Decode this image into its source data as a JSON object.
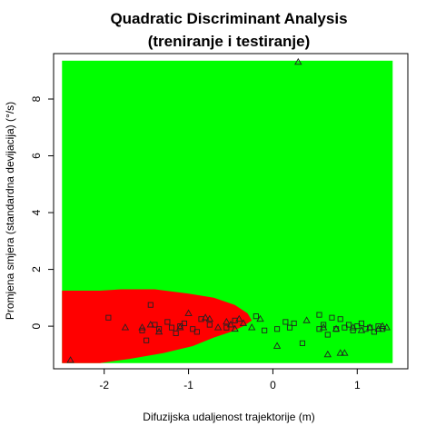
{
  "chart_data": {
    "type": "scatter",
    "title": "Quadratic Discriminant Analysis",
    "subtitle": "(treniranje i testiranje)",
    "xlabel": "Difuzijska udaljenost trajektorije (m)",
    "ylabel": "Promjena smjera (standardna devijacija) (°/s)",
    "xlim": [
      -2.6,
      1.6
    ],
    "ylim": [
      -1.5,
      9.6
    ],
    "xticks": [
      -2,
      -1,
      0,
      1
    ],
    "xtick_labels": [
      "-2",
      "-1",
      "0",
      "1"
    ],
    "yticks": [
      0,
      2,
      4,
      6,
      8
    ],
    "ytick_labels": [
      "0",
      "2",
      "4",
      "6",
      "8"
    ],
    "background_class_color": "#00ff00",
    "region_class_color": "#ff0000",
    "grid": false,
    "decision_region": {
      "x_range": [
        -2.5,
        1.42
      ],
      "y_range": [
        -1.3,
        9.35
      ],
      "upper_boundary": [
        [
          -2.5,
          1.25
        ],
        [
          -2.05,
          1.25
        ],
        [
          -1.8,
          1.3
        ],
        [
          -1.4,
          1.3
        ],
        [
          -1.0,
          1.15
        ],
        [
          -0.7,
          1.0
        ],
        [
          -0.45,
          0.75
        ],
        [
          -0.3,
          0.45
        ],
        [
          -0.25,
          0.2
        ],
        [
          -0.35,
          0.0
        ],
        [
          -0.5,
          -0.2
        ],
        [
          -0.7,
          -0.4
        ],
        [
          -0.95,
          -0.7
        ],
        [
          -1.3,
          -0.95
        ],
        [
          -1.7,
          -1.15
        ],
        [
          -2.05,
          -1.3
        ]
      ]
    },
    "series": [
      {
        "marker": "square",
        "points": [
          [
            -1.95,
            0.3
          ],
          [
            -1.55,
            -0.15
          ],
          [
            -1.5,
            -0.5
          ],
          [
            -1.45,
            0.75
          ],
          [
            -1.4,
            0.05
          ],
          [
            -1.35,
            -0.1
          ],
          [
            -1.25,
            0.15
          ],
          [
            -1.2,
            -0.05
          ],
          [
            -1.15,
            -0.25
          ],
          [
            -1.1,
            0.0
          ],
          [
            -1.05,
            0.1
          ],
          [
            -0.95,
            -0.1
          ],
          [
            -0.9,
            -0.2
          ],
          [
            -0.85,
            0.25
          ],
          [
            -0.75,
            0.05
          ],
          [
            -0.55,
            -0.05
          ],
          [
            -0.45,
            0.2
          ],
          [
            -0.2,
            0.35
          ],
          [
            -0.1,
            -0.15
          ],
          [
            0.05,
            -0.1
          ],
          [
            0.15,
            0.15
          ],
          [
            0.2,
            -0.05
          ],
          [
            0.25,
            0.1
          ],
          [
            0.35,
            -0.6
          ],
          [
            0.55,
            -0.1
          ],
          [
            0.55,
            0.4
          ],
          [
            0.6,
            0.05
          ],
          [
            0.65,
            -0.3
          ],
          [
            0.7,
            0.3
          ],
          [
            0.75,
            -0.1
          ],
          [
            0.8,
            0.25
          ],
          [
            0.85,
            -0.05
          ],
          [
            0.9,
            0.05
          ],
          [
            0.95,
            -0.15
          ],
          [
            1.0,
            0.0
          ],
          [
            1.05,
            0.1
          ],
          [
            1.1,
            -0.1
          ],
          [
            1.15,
            -0.05
          ],
          [
            1.2,
            -0.2
          ],
          [
            1.25,
            0.0
          ],
          [
            1.3,
            -0.1
          ]
        ]
      },
      {
        "marker": "triangle",
        "points": [
          [
            0.3,
            9.3
          ],
          [
            -2.4,
            -1.2
          ],
          [
            -1.75,
            -0.05
          ],
          [
            -1.55,
            -0.05
          ],
          [
            -1.45,
            0.05
          ],
          [
            -1.35,
            -0.2
          ],
          [
            -1.1,
            -0.05
          ],
          [
            -1.0,
            0.45
          ],
          [
            -0.8,
            0.3
          ],
          [
            -0.75,
            0.25
          ],
          [
            -0.65,
            -0.05
          ],
          [
            -0.55,
            0.15
          ],
          [
            -0.5,
            0.05
          ],
          [
            -0.45,
            -0.1
          ],
          [
            -0.4,
            0.25
          ],
          [
            -0.35,
            0.1
          ],
          [
            -0.25,
            -0.05
          ],
          [
            -0.15,
            0.25
          ],
          [
            0.05,
            -0.7
          ],
          [
            0.4,
            0.2
          ],
          [
            0.6,
            -0.05
          ],
          [
            0.65,
            -1.0
          ],
          [
            0.75,
            -0.1
          ],
          [
            0.8,
            -0.95
          ],
          [
            0.85,
            -0.95
          ],
          [
            0.95,
            -0.05
          ],
          [
            1.05,
            -0.15
          ],
          [
            1.15,
            -0.05
          ],
          [
            1.25,
            -0.1
          ],
          [
            1.3,
            0.0
          ],
          [
            1.35,
            -0.05
          ]
        ]
      }
    ]
  }
}
